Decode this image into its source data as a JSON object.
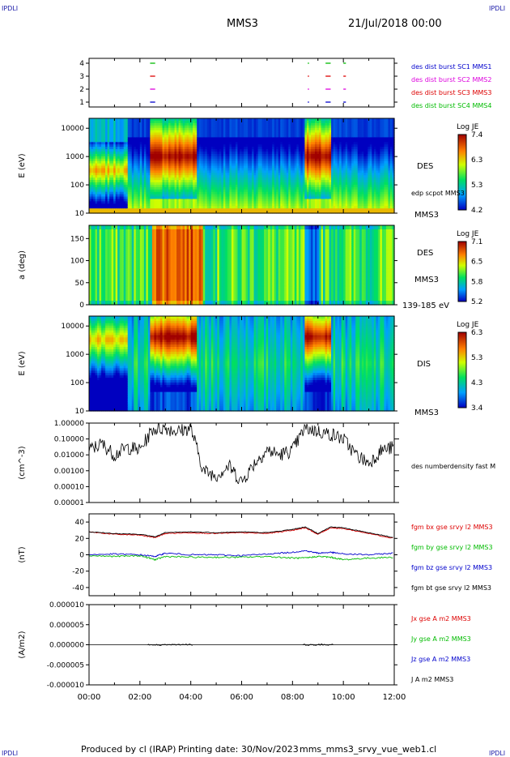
{
  "corner_mark": "IPDLI",
  "header": {
    "spacecraft": "MMS3",
    "start_date": "21/Jul/2018 00:00"
  },
  "footer": {
    "produced_by": "Produced by cl (IRAP)",
    "printing_date": "Printing date: 30/Nov/2023",
    "script": "mms_mms3_srvy_vue_web1.cl"
  },
  "colors": {
    "sc1": "#0000cc",
    "sc2": "#dd00dd",
    "sc3": "#dd0000",
    "sc4": "#00bb00",
    "bx": "#dd0000",
    "by": "#00bb00",
    "bz": "#0000cc",
    "bt": "#000000"
  },
  "chart_data": [
    {
      "type": "scatter",
      "ylabel": "",
      "yticks": [
        "1",
        "2",
        "3",
        "4"
      ],
      "xlim": [
        0,
        12
      ],
      "series": [
        {
          "name": "des dist burst SC1 MMS1",
          "y": 1,
          "x_intervals": [
            [
              2.4,
              2.6
            ],
            [
              8.6,
              8.65
            ],
            [
              9.3,
              9.5
            ],
            [
              10.0,
              10.1
            ]
          ]
        },
        {
          "name": "des dist burst SC2 MMS2",
          "y": 2,
          "x_intervals": [
            [
              2.4,
              2.6
            ],
            [
              8.6,
              8.65
            ],
            [
              9.3,
              9.5
            ],
            [
              10.0,
              10.1
            ]
          ]
        },
        {
          "name": "des dist burst SC3 MMS3",
          "y": 3,
          "x_intervals": [
            [
              2.4,
              2.6
            ],
            [
              8.6,
              8.65
            ],
            [
              9.3,
              9.5
            ],
            [
              10.0,
              10.1
            ]
          ]
        },
        {
          "name": "des dist burst SC4 MMS4",
          "y": 4,
          "x_intervals": [
            [
              2.4,
              2.6
            ],
            [
              8.6,
              8.65
            ],
            [
              9.3,
              9.5
            ],
            [
              10.0,
              10.1
            ]
          ]
        }
      ]
    },
    {
      "type": "heatmap",
      "ylabel": "E (eV)",
      "yscale": "log",
      "yticks": [
        "10",
        "100",
        "1000",
        "10000"
      ],
      "instrument": "DES",
      "spacecraft": "MMS3",
      "overlay": "edp scpot MMS3",
      "colorbar": {
        "title": "Log JE",
        "ticks": [
          "4.2",
          "5.3",
          "6.3",
          "7.4"
        ]
      },
      "features": [
        {
          "x": [
            0.0,
            1.5
          ],
          "peak_energy": 500,
          "level": 6.3
        },
        {
          "x": [
            2.4,
            4.2
          ],
          "peak_energy": 1000,
          "level": 7.4
        },
        {
          "x": [
            8.5,
            9.5
          ],
          "peak_energy": 1500,
          "level": 7.4
        },
        {
          "x": [
            4.5,
            8.4
          ],
          "peak_energy": 30,
          "level": 5.0
        },
        {
          "x": [
            10.0,
            12.0
          ],
          "peak_energy": 30,
          "level": 5.0
        }
      ]
    },
    {
      "type": "heatmap",
      "ylabel": "a (deg)",
      "yticks": [
        "0",
        "50",
        "100",
        "150"
      ],
      "ylim": [
        0,
        180
      ],
      "instrument": "DES",
      "spacecraft": "MMS3",
      "energy_range": "139-185 eV",
      "colorbar": {
        "title": "Log JE",
        "ticks": [
          "5.2",
          "5.8",
          "6.5",
          "7.1"
        ]
      }
    },
    {
      "type": "heatmap",
      "ylabel": "E (eV)",
      "yscale": "log",
      "yticks": [
        "10",
        "100",
        "1000",
        "10000"
      ],
      "instrument": "DIS",
      "spacecraft": "MMS3",
      "colorbar": {
        "title": "Log JE",
        "ticks": [
          "3.4",
          "4.3",
          "5.3",
          "6.3"
        ]
      }
    },
    {
      "type": "line",
      "ylabel": "(cm^-3)",
      "yscale": "log",
      "yticks": [
        "0.00001",
        "0.00010",
        "0.00100",
        "0.01000",
        "0.10000",
        "1.00000"
      ],
      "ylim": [
        1e-05,
        1.0
      ],
      "series": [
        {
          "name": "des numberdensity fast M",
          "x": [
            0,
            0.5,
            1.0,
            1.5,
            2.0,
            2.5,
            3.0,
            3.5,
            4.0,
            4.5,
            5.0,
            5.5,
            6.0,
            6.5,
            7.0,
            7.5,
            8.0,
            8.5,
            9.0,
            9.5,
            10.0,
            10.5,
            11.0,
            11.5,
            12.0
          ],
          "y": [
            0.02,
            0.05,
            0.01,
            0.03,
            0.02,
            0.4,
            0.5,
            0.3,
            0.5,
            0.001,
            0.0005,
            0.002,
            0.0002,
            0.003,
            0.02,
            0.01,
            0.02,
            0.5,
            0.3,
            0.2,
            0.1,
            0.01,
            0.003,
            0.02,
            0.03
          ]
        }
      ]
    },
    {
      "type": "line",
      "ylabel": "(nT)",
      "yticks": [
        "-40",
        "-20",
        "0",
        "20",
        "40"
      ],
      "ylim": [
        -50,
        50
      ],
      "series": [
        {
          "name": "fgm bx gse srvy l2 MMS3",
          "x": [
            0,
            1,
            2,
            2.6,
            3,
            4,
            5,
            6,
            7,
            8,
            8.5,
            9,
            9.5,
            10,
            11,
            12
          ],
          "y": [
            28,
            25,
            24,
            21,
            26,
            27,
            26,
            27,
            26,
            30,
            33,
            25,
            33,
            32,
            26,
            20
          ]
        },
        {
          "name": "fgm by gse srvy l2 MMS3",
          "x": [
            0,
            1,
            2,
            2.6,
            3,
            4,
            5,
            6,
            7,
            8,
            8.5,
            9,
            9.5,
            10,
            11,
            12
          ],
          "y": [
            -1,
            -2,
            -1,
            -6,
            -2,
            -3,
            -3,
            -3,
            -2,
            -4,
            -4,
            -2,
            -3,
            -6,
            -4,
            -3
          ]
        },
        {
          "name": "fgm bz gse srvy l2 MMS3",
          "x": [
            0,
            1,
            2,
            2.6,
            3,
            4,
            5,
            6,
            7,
            8,
            8.5,
            9,
            9.5,
            10,
            11,
            12
          ],
          "y": [
            0,
            1,
            0,
            -2,
            2,
            0,
            0,
            -1,
            1,
            3,
            5,
            2,
            3,
            1,
            0,
            2
          ]
        },
        {
          "name": "fgm bt gse srvy l2 MMS3",
          "x": [
            0,
            1,
            2,
            2.6,
            3,
            4,
            5,
            6,
            7,
            8,
            8.5,
            9,
            9.5,
            10,
            11,
            12
          ],
          "y": [
            28,
            26,
            25,
            22,
            27,
            28,
            27,
            28,
            27,
            31,
            34,
            26,
            34,
            33,
            27,
            21
          ]
        }
      ]
    },
    {
      "type": "line",
      "ylabel": "(A/m2)",
      "yticks": [
        "-0.000010",
        "-0.000005",
        "0.000000",
        "0.000005",
        "0.000010"
      ],
      "ylim": [
        -1e-05,
        1e-05
      ],
      "xlabel": "",
      "xticks": [
        "00:00",
        "02:00",
        "04:00",
        "06:00",
        "08:00",
        "10:00",
        "12:00"
      ],
      "xlim": [
        0,
        12
      ],
      "series": [
        {
          "name": "Jx gse A m2 MMS3"
        },
        {
          "name": "Jy gse A m2 MMS3"
        },
        {
          "name": "Jz gse A m2 MMS3"
        },
        {
          "name": "J A m2 MMS3"
        }
      ]
    }
  ]
}
